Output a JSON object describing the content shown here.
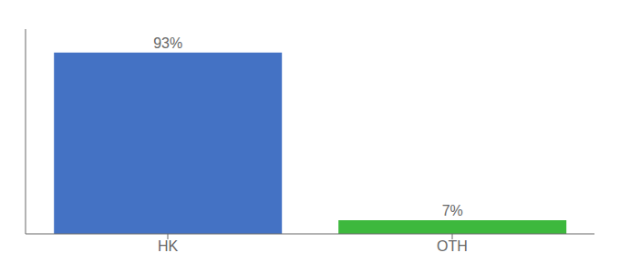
{
  "chart_data": {
    "type": "bar",
    "categories": [
      "HK",
      "OTH"
    ],
    "values": [
      93,
      7
    ],
    "value_labels": [
      "93%",
      "7%"
    ],
    "colors": [
      "#4472c4",
      "#3db83d"
    ],
    "ylim": [
      0,
      105
    ],
    "data_labels": true,
    "tick_labels": "x"
  }
}
